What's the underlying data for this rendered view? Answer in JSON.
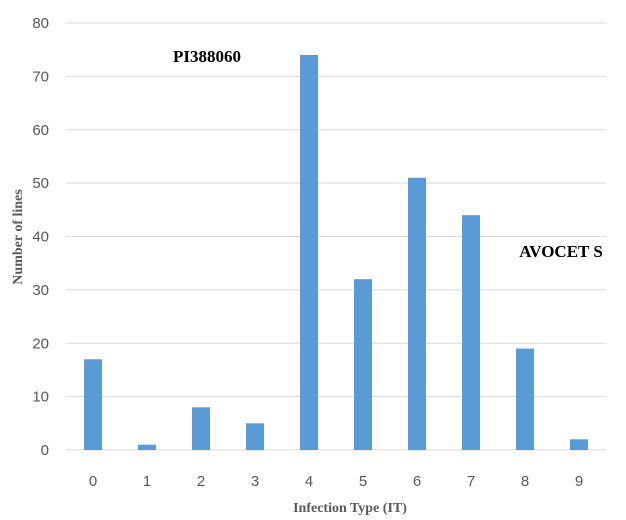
{
  "chart_data": {
    "type": "bar",
    "categories": [
      "0",
      "1",
      "2",
      "3",
      "4",
      "5",
      "6",
      "7",
      "8",
      "9"
    ],
    "values": [
      17,
      1,
      8,
      5,
      74,
      32,
      51,
      44,
      19,
      2
    ],
    "ylim": [
      0,
      80
    ],
    "yticks": [
      "0",
      "10",
      "20",
      "30",
      "40",
      "50",
      "60",
      "70",
      "80"
    ],
    "xlabel": "Infection Type (IT)",
    "ylabel": "Number of lines",
    "grid": true,
    "bar_color": "#5b9bd5",
    "annotations": [
      {
        "text": "PI388060",
        "category": "4"
      },
      {
        "text": "AVOCET S",
        "category": "7"
      }
    ]
  }
}
